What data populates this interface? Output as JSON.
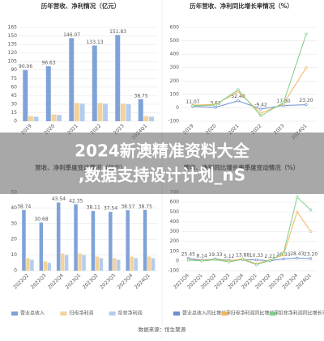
{
  "banner": {
    "line1": "2024新澳精准资料大全",
    "line2": ",数据支持设计计划_nS"
  },
  "source": "数据来源：恒生聚源",
  "chart_data": [
    {
      "type": "bar",
      "title": "历年营收、净利情况（亿元）",
      "categories": [
        "2019",
        "2020",
        "2021",
        "2022",
        "2023",
        "2024Q1"
      ],
      "ylim": [
        0,
        165
      ],
      "yticks": [
        0,
        15,
        30,
        45,
        60,
        75,
        90,
        105,
        120,
        135,
        150,
        165
      ],
      "grid": true,
      "series": [
        {
          "color": "#7fa2d8",
          "values": [
            90.06,
            96.63,
            146.07,
            133.13,
            151.83,
            38.75
          ],
          "data_labels": true
        },
        {
          "color": "#f3d39a",
          "values": [
            9,
            12,
            32,
            32,
            31,
            9
          ]
        },
        {
          "color": "#b4cdee",
          "values": [
            8,
            11,
            31,
            31,
            30,
            8
          ]
        }
      ]
    },
    {
      "type": "line",
      "title": "历年营收、净利同比增长率情况（%）",
      "categories": [
        "2019",
        "2020",
        "2021",
        "2022",
        "2023",
        "2024Q1"
      ],
      "ylim": [
        -100,
        600
      ],
      "yticks": [
        -100,
        0,
        100,
        200,
        300,
        400,
        500,
        600
      ],
      "grid": true,
      "series": [
        {
          "color": "#6b8fd1",
          "values": [
            11.07,
            3.63,
            52.4,
            -9.42,
            17.8,
            23.2
          ],
          "value_labels": [
            "11.07",
            "3.63",
            "52.40",
            "-9.42",
            "17.80",
            "23.20"
          ],
          "data_labels": true
        },
        {
          "color": "#f2b45a",
          "values": [
            20,
            25,
            120,
            -40,
            30,
            300
          ]
        },
        {
          "color": "#7ccf8a",
          "values": [
            15,
            20,
            135,
            -60,
            40,
            550
          ]
        }
      ]
    },
    {
      "type": "bar",
      "title": "营收、净利季度变动情况（亿元）",
      "categories": [
        "2022Q2",
        "2022Q3",
        "2022Q4",
        "2023Q1",
        "2023Q2",
        "2023Q3",
        "2023Q4",
        "2024Q1"
      ],
      "ylim": [
        0,
        50
      ],
      "yticks": [
        0,
        10,
        20,
        30,
        40,
        50
      ],
      "grid": true,
      "legend": "bottom",
      "series": [
        {
          "name": "营业总收入",
          "color": "#7fa2d8",
          "values": [
            38.74,
            30.68,
            43.54,
            42.35,
            38.11,
            37.54,
            38.57,
            38.75
          ],
          "data_labels": true
        },
        {
          "name": "归母净利润",
          "color": "#f3d39a",
          "values": [
            8,
            6,
            11,
            11,
            9,
            8,
            9,
            9
          ]
        },
        {
          "name": "扣非净利润",
          "color": "#b4cdee",
          "values": [
            7,
            5,
            10,
            10,
            8,
            7,
            8,
            8
          ]
        }
      ]
    },
    {
      "type": "line",
      "title": "营收、净利同比增长率季度变动情况（%）",
      "categories": [
        "2021Q4",
        "2022Q1",
        "2022Q2",
        "2022Q3",
        "2022Q4",
        "2023Q1",
        "2023Q2",
        "2023Q3",
        "2023Q4",
        "2024Q1"
      ],
      "ylim": [
        -100,
        700
      ],
      "yticks": [
        -100,
        0,
        100,
        200,
        300,
        400,
        500,
        600,
        700
      ],
      "grid": true,
      "legend": "bottom",
      "series": [
        {
          "name": "营业总收入同比增长率",
          "color": "#6b8fd1",
          "values": [
            25.45,
            8.14,
            19.33,
            5.12,
            13.88,
            10.33,
            2.21,
            20.33,
            28.43,
            23.2
          ],
          "value_labels": [
            "25.45",
            "8.14",
            "19.33",
            "5.12",
            "13.88",
            "10.33",
            "2.21",
            "20.33",
            "28.43",
            "23.20"
          ],
          "data_labels": true
        },
        {
          "name": "归母净利润同比增长率",
          "color": "#f2b45a",
          "values": [
            10,
            5,
            15,
            0,
            20,
            -30,
            10,
            60,
            500,
            300
          ]
        },
        {
          "name": "扣非净利润同比增长率",
          "color": "#7ccf8a",
          "values": [
            8,
            0,
            12,
            -10,
            15,
            -40,
            5,
            80,
            650,
            520
          ]
        }
      ]
    }
  ]
}
